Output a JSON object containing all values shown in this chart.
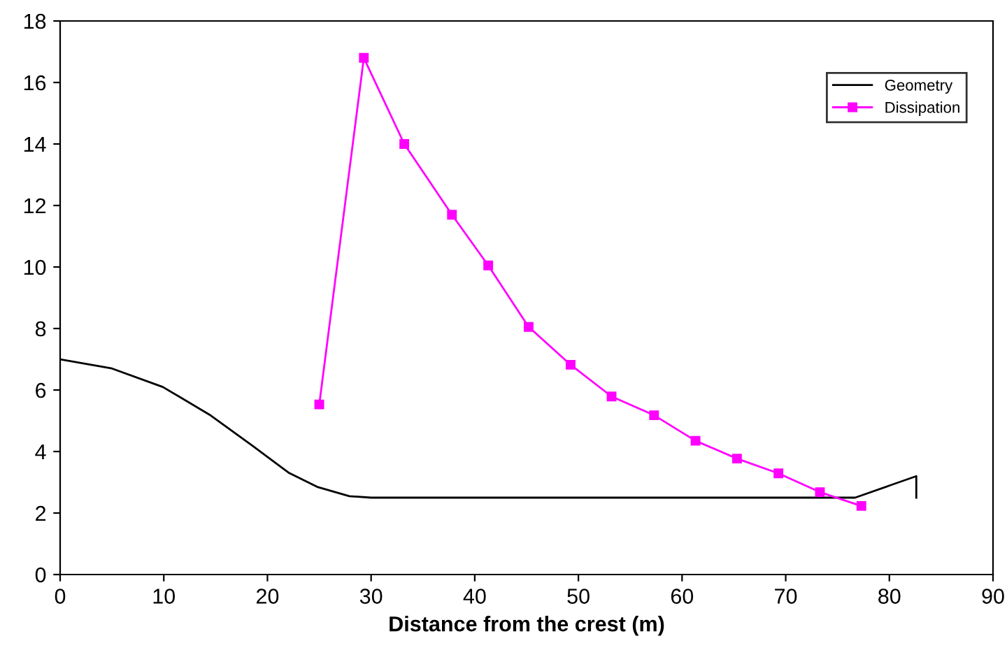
{
  "chart_data": {
    "type": "line",
    "xlabel": "Distance from the crest (m)",
    "xlim": [
      0,
      90
    ],
    "xticks": [
      0,
      10,
      20,
      30,
      40,
      50,
      60,
      70,
      80,
      90
    ],
    "ylim": [
      0,
      18
    ],
    "yticks": [
      0,
      2,
      4,
      6,
      8,
      10,
      12,
      14,
      16,
      18
    ],
    "grid": false,
    "legend": "top right",
    "series": [
      {
        "name": "Geometry",
        "color": "#000000",
        "marker": "none",
        "x": [
          0,
          5,
          9.9,
          14.4,
          18.5,
          22.1,
          24.8,
          27.9,
          30,
          76.7,
          82.6,
          82.6
        ],
        "values": [
          7.0,
          6.7,
          6.1,
          5.2,
          4.2,
          3.3,
          2.85,
          2.55,
          2.5,
          2.5,
          3.2,
          2.5
        ]
      },
      {
        "name": "Dissipation",
        "color": "#ff00ff",
        "marker": "square",
        "x": [
          25.0,
          29.3,
          33.2,
          37.8,
          41.3,
          45.2,
          49.25,
          53.2,
          57.3,
          61.3,
          65.3,
          69.3,
          73.3,
          77.3
        ],
        "values": [
          5.53,
          16.8,
          14.0,
          11.7,
          10.05,
          8.05,
          6.82,
          5.79,
          5.18,
          4.35,
          3.77,
          3.29,
          2.68,
          2.23
        ]
      }
    ]
  }
}
